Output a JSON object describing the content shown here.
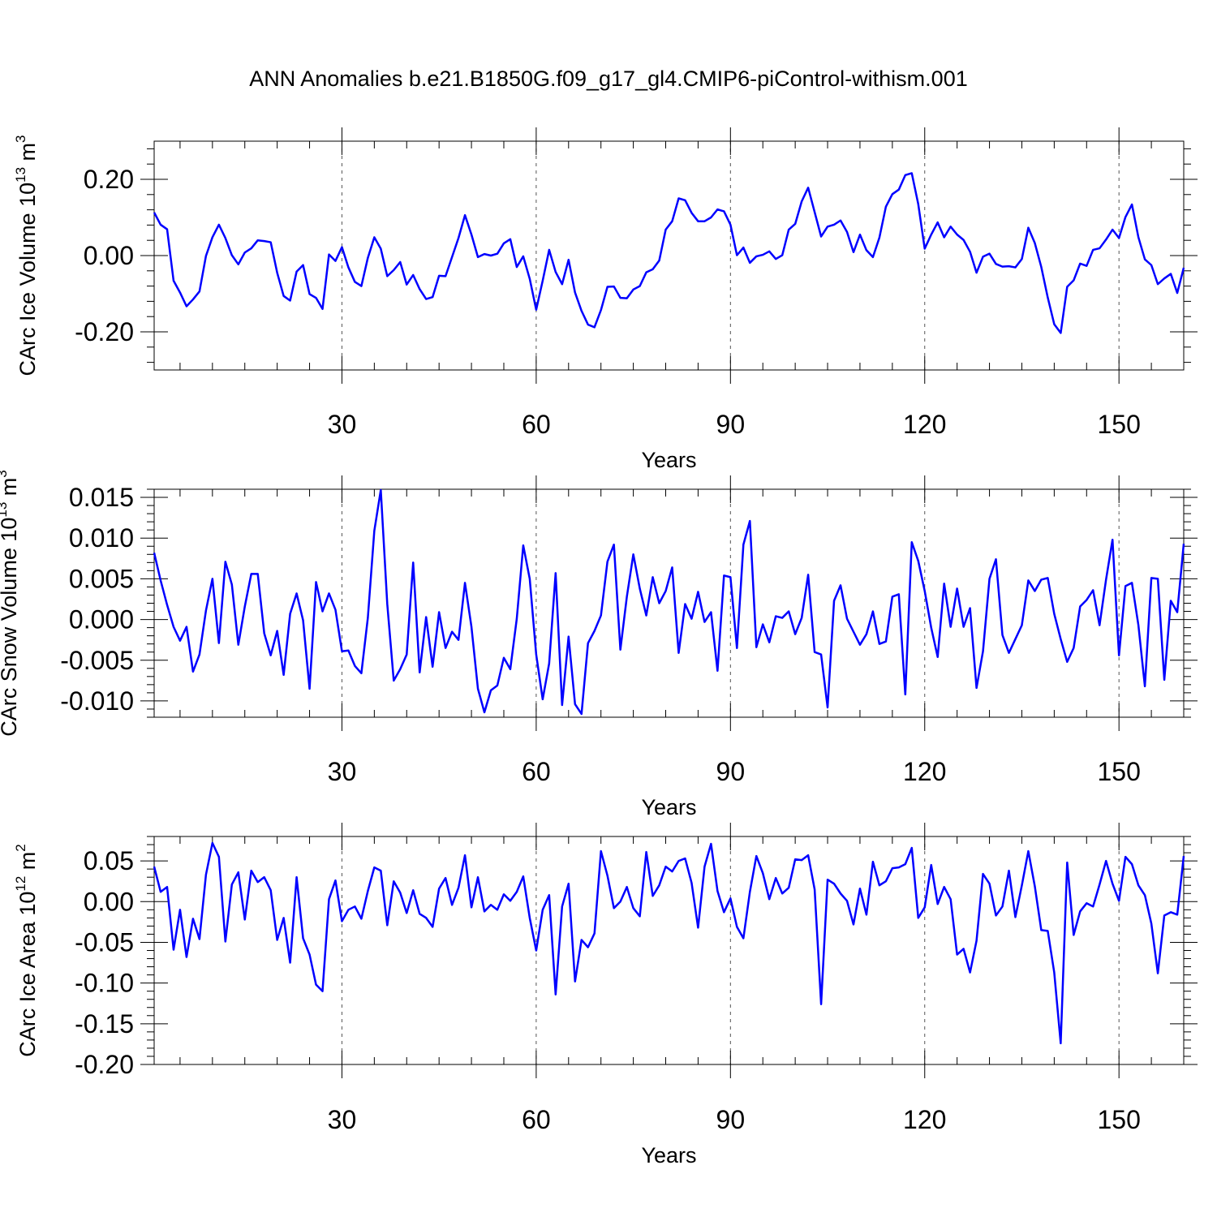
{
  "title": "ANN Anomalies b.e21.B1850G.f09_g17_gl4.CMIP6-piControl-withism.001",
  "colors": {
    "series": "#0000ff",
    "axes": "#000000",
    "grid": "#555555"
  },
  "chart_data": [
    {
      "type": "line",
      "xlabel": "Years",
      "ylabel_main": "CArc Ice Volume 10",
      "ylabel_exp": "13",
      "ylabel_unit": " m",
      "ylabel_unit_exp": "3",
      "xlim": [
        1,
        160
      ],
      "ylim": [
        -0.3,
        0.3
      ],
      "xticks": [
        30,
        60,
        90,
        120,
        150
      ],
      "yticks": [
        -0.2,
        0.0,
        0.2
      ],
      "ytick_labels": [
        "-0.20",
        "0.00",
        "0.20"
      ],
      "grid": "vertical dashed at major x ticks",
      "x_start": 1,
      "values": [
        0.113,
        0.081,
        0.069,
        -0.066,
        -0.097,
        -0.133,
        -0.115,
        -0.094,
        -0.001,
        0.048,
        0.081,
        0.046,
        0.001,
        -0.023,
        0.008,
        0.019,
        0.04,
        0.038,
        0.035,
        -0.045,
        -0.106,
        -0.118,
        -0.042,
        -0.025,
        -0.101,
        -0.111,
        -0.14,
        0.003,
        -0.014,
        0.022,
        -0.031,
        -0.069,
        -0.08,
        -0.006,
        0.048,
        0.018,
        -0.054,
        -0.038,
        -0.017,
        -0.076,
        -0.051,
        -0.088,
        -0.114,
        -0.109,
        -0.053,
        -0.054,
        -0.004,
        0.046,
        0.106,
        0.055,
        -0.004,
        0.004,
        0.0,
        0.005,
        0.032,
        0.043,
        -0.03,
        -0.002,
        -0.061,
        -0.142,
        -0.066,
        0.015,
        -0.043,
        -0.075,
        -0.011,
        -0.097,
        -0.145,
        -0.181,
        -0.188,
        -0.143,
        -0.082,
        -0.081,
        -0.111,
        -0.112,
        -0.089,
        -0.08,
        -0.044,
        -0.036,
        -0.013,
        0.068,
        0.09,
        0.15,
        0.145,
        0.112,
        0.09,
        0.09,
        0.1,
        0.121,
        0.116,
        0.081,
        0.001,
        0.021,
        -0.019,
        -0.002,
        0.002,
        0.011,
        -0.009,
        0.001,
        0.068,
        0.083,
        0.142,
        0.178,
        0.114,
        0.05,
        0.076,
        0.081,
        0.092,
        0.062,
        0.009,
        0.055,
        0.014,
        -0.004,
        0.047,
        0.128,
        0.161,
        0.173,
        0.211,
        0.216,
        0.135,
        0.018,
        0.055,
        0.087,
        0.048,
        0.076,
        0.055,
        0.041,
        0.01,
        -0.045,
        -0.003,
        0.005,
        -0.022,
        -0.029,
        -0.028,
        -0.031,
        -0.009,
        0.073,
        0.033,
        -0.03,
        -0.11,
        -0.18,
        -0.203,
        -0.082,
        -0.065,
        -0.021,
        -0.027,
        0.015,
        0.019,
        0.042,
        0.068,
        0.046,
        0.101,
        0.134,
        0.048,
        -0.01,
        -0.025,
        -0.075,
        -0.06,
        -0.048,
        -0.098,
        -0.032
      ]
    },
    {
      "type": "line",
      "xlabel": "Years",
      "ylabel_main": "CArc Snow Volume 10",
      "ylabel_exp": "13",
      "ylabel_unit": " m",
      "ylabel_unit_exp": "3",
      "xlim": [
        1,
        160
      ],
      "ylim": [
        -0.012,
        0.016
      ],
      "xticks": [
        30,
        60,
        90,
        120,
        150
      ],
      "yticks": [
        -0.01,
        -0.005,
        0.0,
        0.005,
        0.01,
        0.015
      ],
      "ytick_labels": [
        "-0.010",
        "-0.005",
        "0.000",
        "0.005",
        "0.010",
        "0.015"
      ],
      "grid": "vertical dashed at major x ticks",
      "x_start": 1,
      "values": [
        0.0082,
        0.0048,
        0.0018,
        -0.0009,
        -0.0026,
        -0.0009,
        -0.0064,
        -0.0043,
        0.0011,
        0.005,
        -0.0029,
        0.0071,
        0.0043,
        -0.0031,
        0.0016,
        0.0056,
        0.0056,
        -0.0017,
        -0.0044,
        -0.0014,
        -0.0068,
        0.0007,
        0.0032,
        -0.0001,
        -0.0085,
        0.0046,
        0.001,
        0.0032,
        0.0012,
        -0.0039,
        -0.0038,
        -0.0057,
        -0.0066,
        0.0002,
        0.0109,
        0.0159,
        0.0019,
        -0.0075,
        -0.0061,
        -0.0043,
        0.007,
        -0.0065,
        0.0003,
        -0.0058,
        0.0009,
        -0.0035,
        -0.0015,
        -0.0025,
        0.0045,
        -0.0009,
        -0.0085,
        -0.0114,
        -0.0087,
        -0.0081,
        -0.0047,
        -0.0061,
        0.0001,
        0.0091,
        0.005,
        -0.0043,
        -0.0098,
        -0.0054,
        0.0057,
        -0.0105,
        -0.0021,
        -0.0104,
        -0.0116,
        -0.0029,
        -0.0014,
        0.0005,
        0.0071,
        0.0092,
        -0.0037,
        0.0028,
        0.008,
        0.0038,
        0.0005,
        0.0052,
        0.002,
        0.0035,
        0.0064,
        -0.0041,
        0.0019,
        0.0001,
        0.0034,
        -0.0003,
        0.0009,
        -0.0063,
        0.0054,
        0.0052,
        -0.0035,
        0.0092,
        0.0121,
        -0.0034,
        -0.0006,
        -0.0028,
        0.0004,
        0.0002,
        0.001,
        -0.0018,
        0.0002,
        0.0055,
        -0.004,
        -0.0043,
        -0.0108,
        0.0023,
        0.0042,
        0.0001,
        -0.0015,
        -0.0031,
        -0.0018,
        0.001,
        -0.003,
        -0.0027,
        0.0028,
        0.0031,
        -0.0092,
        0.0095,
        0.0072,
        0.0035,
        -0.001,
        -0.0046,
        0.0044,
        -0.0009,
        0.0038,
        -0.0009,
        0.0014,
        -0.0084,
        -0.0039,
        0.005,
        0.0074,
        -0.0019,
        -0.0041,
        -0.0024,
        -0.0007,
        0.0048,
        0.0035,
        0.0049,
        0.0051,
        0.0007,
        -0.0024,
        -0.0052,
        -0.0035,
        0.0016,
        0.0024,
        0.0036,
        -0.0007,
        0.0049,
        0.0098,
        -0.0044,
        0.0041,
        0.0045,
        -0.0007,
        -0.0082,
        0.0051,
        0.005,
        -0.0074,
        0.0023,
        0.0009,
        0.0093
      ]
    },
    {
      "type": "line",
      "xlabel": "Years",
      "ylabel_main": "CArc Ice Area 10",
      "ylabel_exp": "12",
      "ylabel_unit": " m",
      "ylabel_unit_exp": "2",
      "xlim": [
        1,
        160
      ],
      "ylim": [
        -0.2,
        0.08
      ],
      "xticks": [
        30,
        60,
        90,
        120,
        150
      ],
      "yticks": [
        -0.2,
        -0.15,
        -0.1,
        -0.05,
        0.0,
        0.05
      ],
      "ytick_labels": [
        "-0.20",
        "-0.15",
        "-0.10",
        "-0.05",
        "0.00",
        "0.05"
      ],
      "grid": "vertical dashed at major x ticks",
      "x_start": 1,
      "values": [
        0.043,
        0.012,
        0.018,
        -0.059,
        -0.01,
        -0.068,
        -0.021,
        -0.046,
        0.033,
        0.072,
        0.055,
        -0.049,
        0.021,
        0.036,
        -0.022,
        0.038,
        0.024,
        0.03,
        0.014,
        -0.047,
        -0.02,
        -0.075,
        0.03,
        -0.045,
        -0.065,
        -0.102,
        -0.11,
        0.003,
        0.026,
        -0.024,
        -0.01,
        -0.006,
        -0.021,
        0.013,
        0.042,
        0.038,
        -0.029,
        0.025,
        0.011,
        -0.014,
        0.014,
        -0.015,
        -0.02,
        -0.031,
        0.016,
        0.029,
        -0.004,
        0.017,
        0.057,
        -0.007,
        0.03,
        -0.012,
        -0.004,
        -0.01,
        0.009,
        0.001,
        0.012,
        0.031,
        -0.02,
        -0.06,
        -0.01,
        0.008,
        -0.114,
        -0.006,
        0.022,
        -0.098,
        -0.047,
        -0.056,
        -0.039,
        0.062,
        0.032,
        -0.008,
        0.0,
        0.018,
        -0.008,
        -0.018,
        0.061,
        0.007,
        0.02,
        0.043,
        0.037,
        0.05,
        0.053,
        0.023,
        -0.032,
        0.043,
        0.071,
        0.013,
        -0.013,
        0.004,
        -0.031,
        -0.045,
        0.012,
        0.056,
        0.035,
        0.003,
        0.029,
        0.01,
        0.017,
        0.052,
        0.051,
        0.057,
        0.015,
        -0.126,
        0.027,
        0.022,
        0.01,
        0.001,
        -0.028,
        0.016,
        -0.016,
        0.049,
        0.02,
        0.025,
        0.041,
        0.042,
        0.046,
        0.066,
        -0.02,
        -0.007,
        0.045,
        -0.003,
        0.018,
        0.003,
        -0.065,
        -0.058,
        -0.087,
        -0.048,
        0.034,
        0.022,
        -0.017,
        -0.006,
        0.038,
        -0.019,
        0.02,
        0.062,
        0.019,
        -0.035,
        -0.036,
        -0.087,
        -0.174,
        0.048,
        -0.041,
        -0.012,
        -0.002,
        -0.006,
        0.021,
        0.05,
        0.022,
        0.001,
        0.055,
        0.046,
        0.02,
        0.008,
        -0.027,
        -0.088,
        -0.017,
        -0.013,
        -0.016,
        0.056
      ]
    }
  ]
}
